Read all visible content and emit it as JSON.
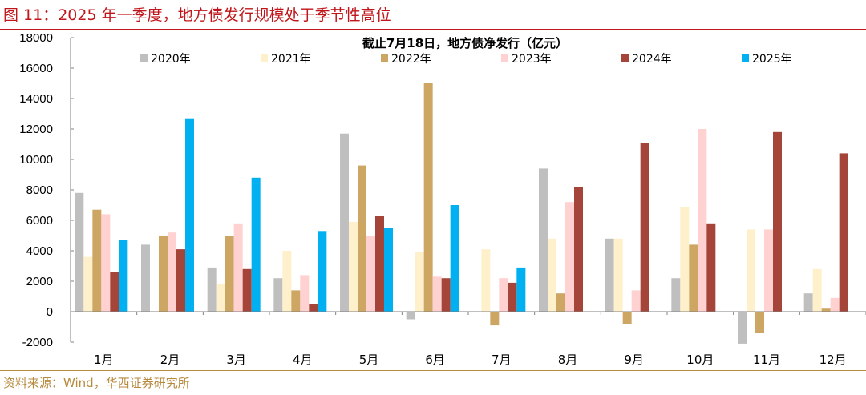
{
  "figure_title": "图 11：2025 年一季度，地方债发行规模处于季节性高位",
  "source": "资料来源：Wind，华西证券研究所",
  "chart_data": {
    "type": "bar",
    "title": "截止7月18日，地方债净发行（亿元）",
    "xlabel": "",
    "ylabel": "",
    "ylim": [
      -2000,
      18000
    ],
    "yticks": [
      -2000,
      0,
      2000,
      4000,
      6000,
      8000,
      10000,
      12000,
      14000,
      16000,
      18000
    ],
    "legend_position": "top",
    "categories": [
      "1月",
      "2月",
      "3月",
      "4月",
      "5月",
      "6月",
      "7月",
      "8月",
      "9月",
      "10月",
      "11月",
      "12月"
    ],
    "series": [
      {
        "name": "2020年",
        "color": "#bfbfbf",
        "values": [
          7800,
          4400,
          2900,
          2200,
          11700,
          -500,
          0,
          9400,
          4800,
          2200,
          -2100,
          1200
        ]
      },
      {
        "name": "2021年",
        "color": "#fff0cc",
        "values": [
          3600,
          0,
          1800,
          4000,
          5900,
          3900,
          4100,
          4800,
          4800,
          6900,
          5400,
          2800
        ]
      },
      {
        "name": "2022年",
        "color": "#cda664",
        "values": [
          6700,
          5000,
          5000,
          1400,
          9600,
          15000,
          -900,
          1200,
          -800,
          4400,
          -1400,
          200
        ]
      },
      {
        "name": "2023年",
        "color": "#ffd1d1",
        "values": [
          6400,
          5200,
          5800,
          2400,
          5000,
          2300,
          2200,
          7200,
          1400,
          12000,
          5400,
          900
        ]
      },
      {
        "name": "2024年",
        "color": "#a5453a",
        "values": [
          2600,
          4100,
          2800,
          500,
          6300,
          2200,
          1900,
          8200,
          11100,
          5800,
          11800,
          10400
        ]
      },
      {
        "name": "2025年",
        "color": "#00b0f0",
        "values": [
          4700,
          12700,
          8800,
          5300,
          5500,
          7000,
          2900,
          null,
          null,
          null,
          null,
          null
        ]
      }
    ]
  }
}
